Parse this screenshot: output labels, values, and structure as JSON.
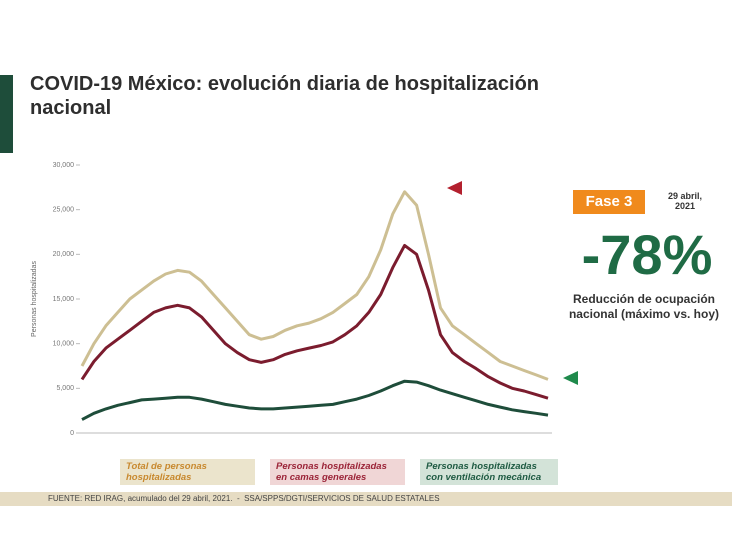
{
  "chart_data": {
    "type": "line",
    "title": "COVID-19 México: evolución diaria de hospitalización nacional",
    "ylabel": "Personas hospitalizadas",
    "ylim": [
      0,
      30000
    ],
    "yticks": [
      {
        "value": 0,
        "label": "0"
      },
      {
        "value": 5000,
        "label": "5,000"
      },
      {
        "value": 10000,
        "label": "10,000"
      },
      {
        "value": 15000,
        "label": "15,000"
      },
      {
        "value": 20000,
        "label": "20,000"
      },
      {
        "value": 25000,
        "label": "25,000"
      },
      {
        "value": 30000,
        "label": "30,000"
      }
    ],
    "grid": false,
    "series": [
      {
        "name": "Total de personas hospitalizadas",
        "color": "#cdbf93",
        "text_color": "#c8892f",
        "legend_bg": "#ebe4cc",
        "values": [
          7500,
          10000,
          12000,
          13500,
          15000,
          16000,
          17000,
          17800,
          18200,
          18000,
          17000,
          15500,
          14000,
          12500,
          11000,
          10500,
          10800,
          11500,
          12000,
          12300,
          12800,
          13500,
          14500,
          15500,
          17500,
          20500,
          24500,
          27000,
          25500,
          20000,
          14000,
          12000,
          11000,
          10000,
          9000,
          8000,
          7500,
          7000,
          6500,
          6000
        ]
      },
      {
        "name": "Personas hospitalizadas en camas generales",
        "color": "#7b1c2e",
        "text_color": "#9b2438",
        "legend_bg": "#f0d6d6",
        "values": [
          6000,
          8000,
          9500,
          10500,
          11500,
          12500,
          13500,
          14000,
          14300,
          14000,
          13000,
          11500,
          10000,
          9000,
          8200,
          7900,
          8200,
          8800,
          9200,
          9500,
          9800,
          10200,
          11000,
          12000,
          13500,
          15500,
          18500,
          21000,
          20000,
          16000,
          11000,
          9000,
          8000,
          7200,
          6300,
          5600,
          5000,
          4700,
          4300,
          3900
        ]
      },
      {
        "name": "Personas hospitalizadas con ventilación mecánica",
        "color": "#1e4d3a",
        "text_color": "#1e5a42",
        "legend_bg": "#d3e3d8",
        "values": [
          1500,
          2200,
          2700,
          3100,
          3400,
          3700,
          3800,
          3900,
          4000,
          4000,
          3800,
          3500,
          3200,
          3000,
          2800,
          2700,
          2700,
          2800,
          2900,
          3000,
          3100,
          3200,
          3500,
          3800,
          4200,
          4700,
          5300,
          5800,
          5700,
          5300,
          4800,
          4400,
          4000,
          3600,
          3200,
          2900,
          2600,
          2400,
          2200,
          2000
        ]
      }
    ]
  },
  "side_panel": {
    "phase": "Fase 3",
    "date": "29 abril, 2021",
    "change": "-78%",
    "caption": "Reducción de ocupación nacional (máximo vs. hoy)"
  },
  "footer": "FUENTE: RED IRAG, acumulado del 29 abril, 2021.  -  SSA/SPPS/DGTI/SERVICIOS DE SALUD ESTATALES"
}
